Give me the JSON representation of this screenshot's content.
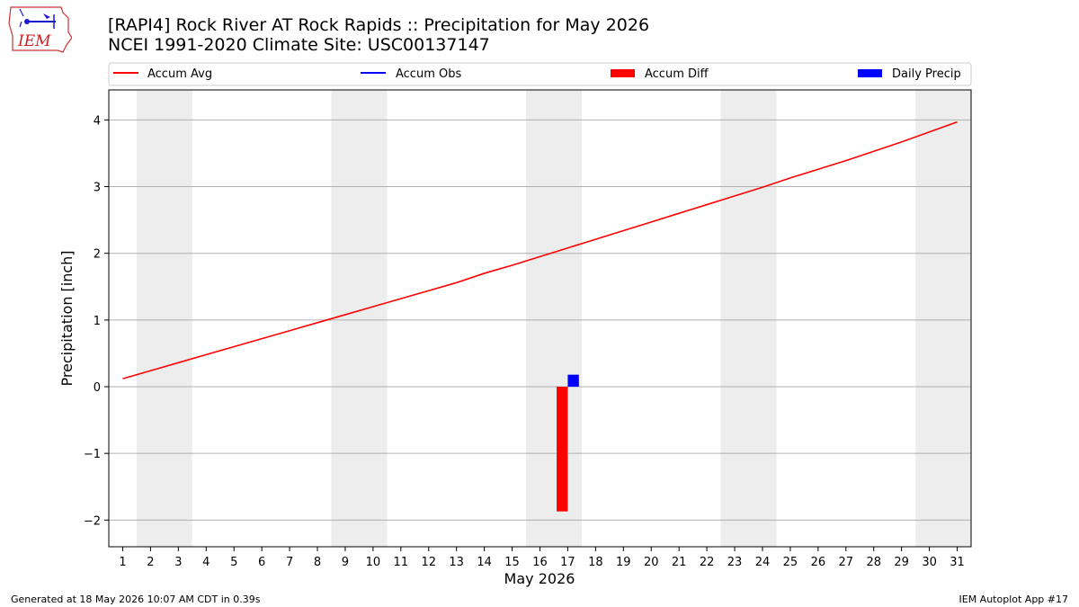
{
  "header": {
    "title_line1": "[RAPI4] Rock River  AT Rock Rapids :: Precipitation for May 2026",
    "title_line2": "NCEI 1991-2020 Climate Site: USC00137147",
    "logo_text": "IEM"
  },
  "footer": {
    "generated": "Generated at 18 May 2026 10:07 AM CDT in 0.39s",
    "app": "IEM Autoplot App #17"
  },
  "chart_data": {
    "type": "line",
    "xlabel": "May 2026",
    "ylabel": "Precipitation [inch]",
    "xlim": [
      0.5,
      31.5
    ],
    "ylim": [
      -2.4,
      4.45
    ],
    "yticks": [
      -2,
      -1,
      0,
      1,
      2,
      3,
      4
    ],
    "ytick_labels": [
      "−2",
      "−1",
      "0",
      "1",
      "2",
      "3",
      "4"
    ],
    "xticks": [
      1,
      2,
      3,
      4,
      5,
      6,
      7,
      8,
      9,
      10,
      11,
      12,
      13,
      14,
      15,
      16,
      17,
      18,
      19,
      20,
      21,
      22,
      23,
      24,
      25,
      26,
      27,
      28,
      29,
      30,
      31
    ],
    "grid": "horizontal",
    "weekend_bands": [
      [
        1.5,
        3.5
      ],
      [
        8.5,
        10.5
      ],
      [
        15.5,
        17.5
      ],
      [
        22.5,
        24.5
      ],
      [
        29.5,
        31.5
      ]
    ],
    "legend_position": "top",
    "legend": [
      {
        "label": "Accum Avg",
        "kind": "line",
        "color": "#ff0000"
      },
      {
        "label": "Accum Obs",
        "kind": "line",
        "color": "#0000ff"
      },
      {
        "label": "Accum Diff",
        "kind": "bar",
        "color": "#ff0000"
      },
      {
        "label": "Daily Precip",
        "kind": "bar",
        "color": "#0000ff"
      }
    ],
    "series": [
      {
        "name": "Accum Avg",
        "type": "line",
        "color": "#ff0000",
        "x": [
          1,
          2,
          3,
          4,
          5,
          6,
          7,
          8,
          9,
          10,
          11,
          12,
          13,
          14,
          15,
          16,
          17,
          18,
          19,
          20,
          21,
          22,
          23,
          24,
          25,
          26,
          27,
          28,
          29,
          30,
          31
        ],
        "values": [
          0.12,
          0.24,
          0.36,
          0.48,
          0.6,
          0.72,
          0.84,
          0.96,
          1.08,
          1.2,
          1.32,
          1.44,
          1.56,
          1.7,
          1.82,
          1.95,
          2.08,
          2.21,
          2.34,
          2.47,
          2.6,
          2.73,
          2.86,
          2.99,
          3.13,
          3.26,
          3.39,
          3.53,
          3.67,
          3.82,
          3.97
        ]
      },
      {
        "name": "Accum Diff",
        "type": "bar",
        "color": "#ff0000",
        "x": [
          17
        ],
        "values": [
          -1.87
        ]
      },
      {
        "name": "Daily Precip",
        "type": "bar",
        "color": "#0000ff",
        "x": [
          17
        ],
        "values": [
          0.18
        ]
      }
    ]
  }
}
